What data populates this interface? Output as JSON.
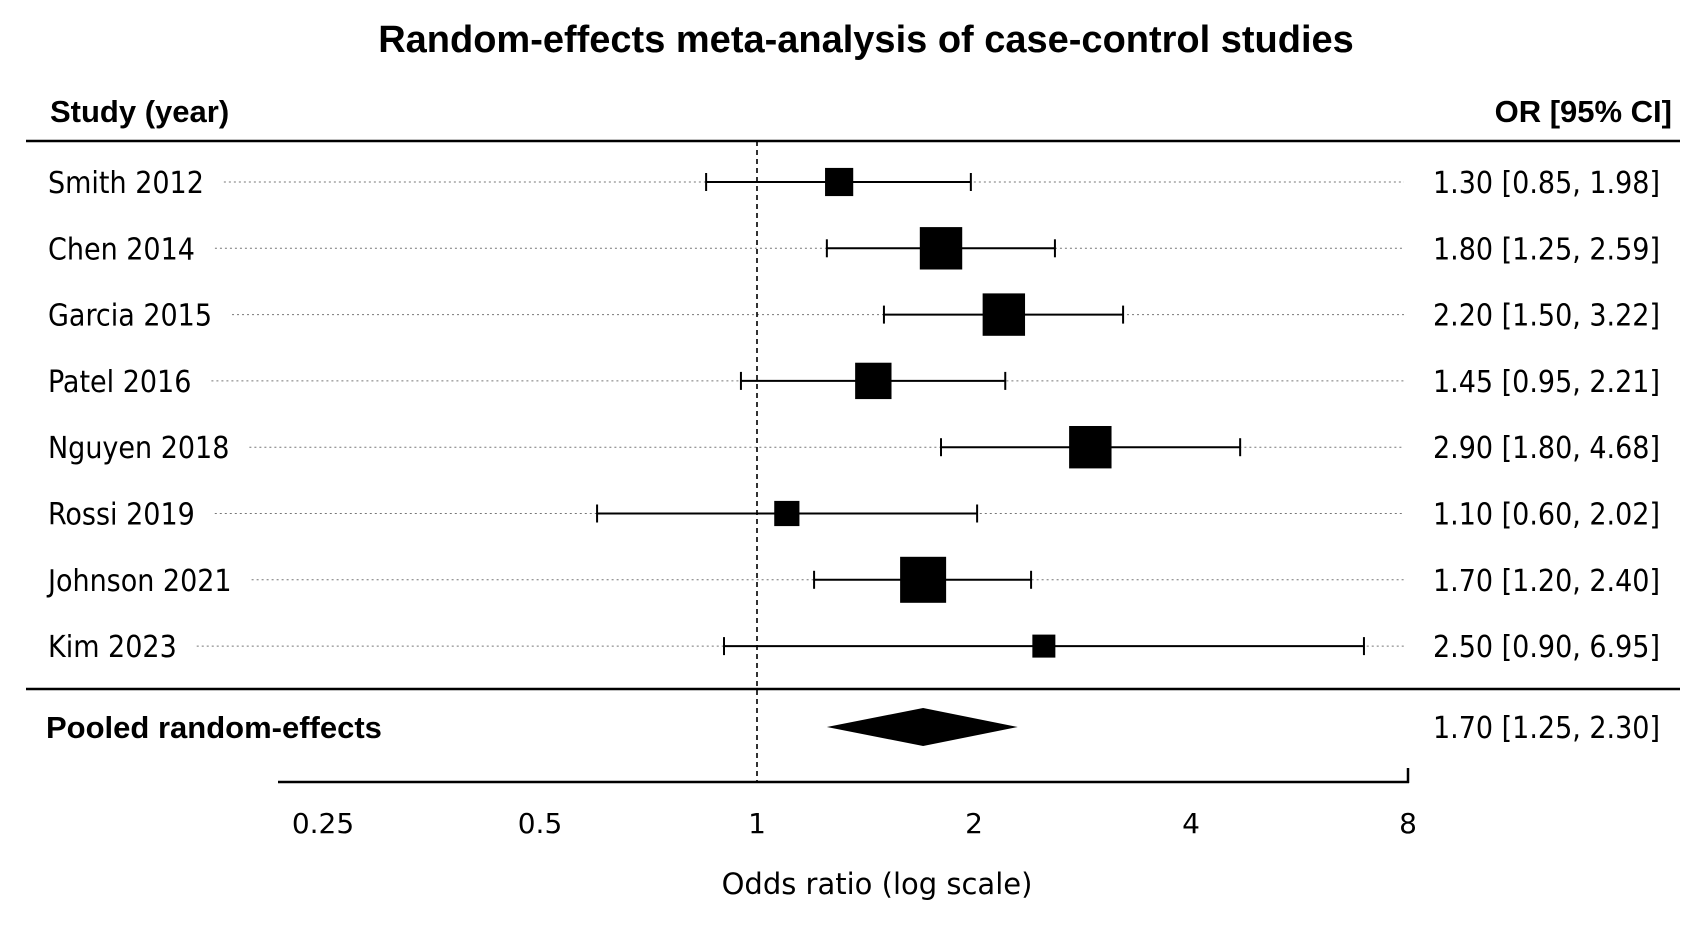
{
  "chart_data": {
    "type": "forest",
    "title": "Random-effects meta-analysis of case-control studies",
    "header_left": "Study (year)",
    "header_right": "OR [95% CI]",
    "xlabel": "Odds ratio (log scale)",
    "x_scale": "log",
    "x_ticks": [
      0.25,
      0.5,
      1,
      2,
      4,
      8
    ],
    "x_tick_labels": [
      "0.25",
      "0.5",
      "1",
      "2",
      "4",
      "8"
    ],
    "reference_line": 1,
    "studies": [
      {
        "label": "Smith 2012",
        "or": 1.3,
        "lower": 0.85,
        "upper": 1.98,
        "ci_text": "1.30 [0.85, 1.98]",
        "weight": 1.5
      },
      {
        "label": "Chen 2014",
        "or": 1.8,
        "lower": 1.25,
        "upper": 2.59,
        "ci_text": "1.80 [1.25, 2.59]",
        "weight": 3.4
      },
      {
        "label": "Garcia 2015",
        "or": 2.2,
        "lower": 1.5,
        "upper": 3.22,
        "ci_text": "2.20 [1.50, 3.22]",
        "weight": 3.4
      },
      {
        "label": "Patel 2016",
        "or": 1.45,
        "lower": 0.95,
        "upper": 2.21,
        "ci_text": "1.45 [0.95, 2.21]",
        "weight": 2.5
      },
      {
        "label": "Nguyen 2018",
        "or": 2.9,
        "lower": 1.8,
        "upper": 4.68,
        "ci_text": "2.90 [1.80, 4.68]",
        "weight": 3.4
      },
      {
        "label": "Rossi 2019",
        "or": 1.1,
        "lower": 0.6,
        "upper": 2.02,
        "ci_text": "1.10 [0.60, 2.02]",
        "weight": 1.2
      },
      {
        "label": "Johnson 2021",
        "or": 1.7,
        "lower": 1.2,
        "upper": 2.4,
        "ci_text": "1.70 [1.20, 2.40]",
        "weight": 4.0
      },
      {
        "label": "Kim 2023",
        "or": 2.5,
        "lower": 0.9,
        "upper": 6.95,
        "ci_text": "2.50 [0.90, 6.95]",
        "weight": 1.0
      }
    ],
    "pooled": {
      "label": "Pooled random-effects",
      "or": 1.7,
      "lower": 1.25,
      "upper": 2.3,
      "ci_text": "1.70 [1.25, 2.30]"
    }
  }
}
